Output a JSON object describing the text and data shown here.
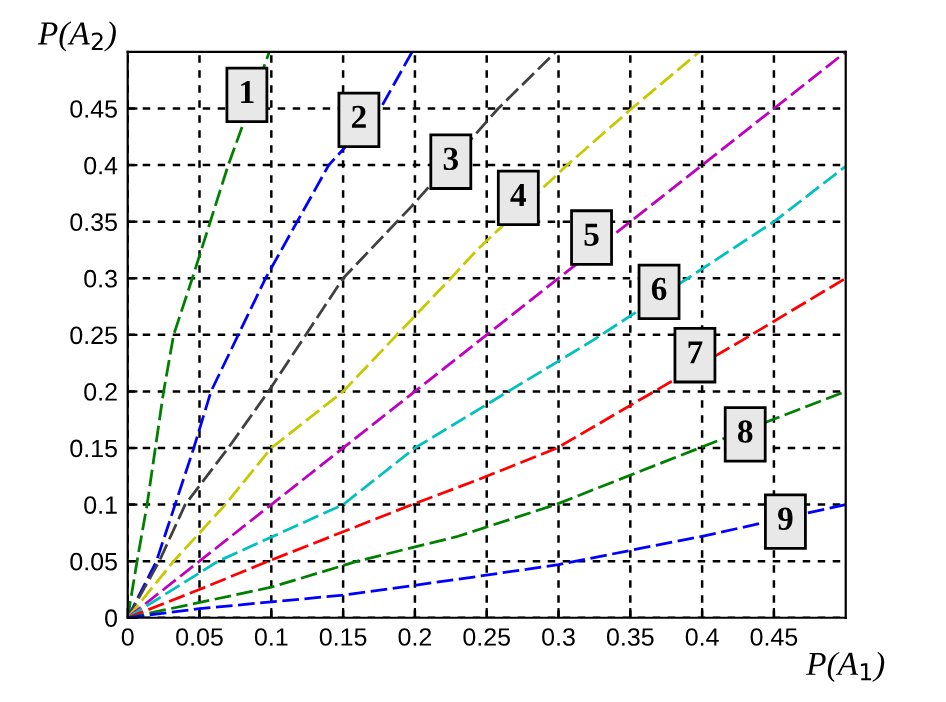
{
  "chart_data": {
    "type": "line",
    "xlabel": "P(A$_{1}$)",
    "ylabel": "P(A$_{2}$)",
    "series": [
      {
        "color": "#008000",
        "x": [
          0,
          0.0065,
          0.0135,
          0.025,
          0.032,
          0.045,
          0.07,
          0.0986
        ],
        "values": [
          0,
          0.05,
          0.1,
          0.2,
          0.25,
          0.3,
          0.4,
          0.5
        ]
      },
      {
        "color": "#0000ff",
        "x": [
          0,
          0.02,
          0.033,
          0.046,
          0.058,
          0.096,
          0.14,
          0.176,
          0.198
        ],
        "values": [
          0,
          0.05,
          0.1,
          0.15,
          0.2,
          0.3,
          0.4,
          0.45,
          0.5
        ]
      },
      {
        "color": "#404040",
        "x": [
          0,
          0.022,
          0.04,
          0.07,
          0.098,
          0.15,
          0.198,
          0.258,
          0.298
        ],
        "values": [
          0,
          0.05,
          0.1,
          0.15,
          0.2,
          0.3,
          0.364,
          0.45,
          0.5
        ]
      },
      {
        "color": "#c8c800",
        "x": [
          0,
          0.032,
          0.068,
          0.1,
          0.15,
          0.225,
          0.244,
          0.306,
          0.351,
          0.398
        ],
        "values": [
          0,
          0.05,
          0.1,
          0.15,
          0.2,
          0.3,
          0.326,
          0.4,
          0.45,
          0.5
        ]
      },
      {
        "color": "#c000c0",
        "x": [
          0,
          0.05,
          0.1,
          0.2,
          0.3,
          0.45,
          0.5
        ],
        "values": [
          0,
          0.05,
          0.1,
          0.2,
          0.3,
          0.45,
          0.5
        ]
      },
      {
        "color": "#00c0c0",
        "x": [
          0,
          0.063,
          0.15,
          0.2,
          0.265,
          0.325,
          0.39,
          0.45,
          0.5
        ],
        "values": [
          0,
          0.05,
          0.1,
          0.15,
          0.2,
          0.246,
          0.3,
          0.35,
          0.399
        ]
      },
      {
        "color": "#ff0000",
        "x": [
          0,
          0.05,
          0.098,
          0.198,
          0.244,
          0.299,
          0.364,
          0.429,
          0.5
        ],
        "values": [
          0,
          0.025,
          0.05,
          0.1,
          0.122,
          0.15,
          0.198,
          0.246,
          0.3
        ]
      },
      {
        "color": "#008000",
        "x": [
          0,
          0.1,
          0.16,
          0.23,
          0.298,
          0.398,
          0.5
        ],
        "values": [
          0,
          0.027,
          0.05,
          0.072,
          0.1,
          0.15,
          0.2
        ]
      },
      {
        "color": "#0000ff",
        "x": [
          0,
          0.05,
          0.1,
          0.15,
          0.23,
          0.3,
          0.4,
          0.5
        ],
        "values": [
          0,
          0.008,
          0.014,
          0.02,
          0.034,
          0.047,
          0.072,
          0.1
        ]
      }
    ],
    "xlim": [
      0,
      0.5
    ],
    "ylim": [
      0,
      0.5
    ],
    "xticks": [
      0,
      0.05,
      0.1,
      0.15,
      0.2,
      0.25,
      0.3,
      0.35,
      0.4,
      0.45
    ],
    "yticks": [
      0,
      0.05,
      0.1,
      0.15,
      0.2,
      0.25,
      0.3,
      0.35,
      0.4,
      0.45
    ],
    "grid": true,
    "line_style": "dashed",
    "legend": false,
    "annotations": [
      {
        "text": "1",
        "x": 0.083,
        "y": 0.462
      },
      {
        "text": "2",
        "x": 0.161,
        "y": 0.44
      },
      {
        "text": "3",
        "x": 0.225,
        "y": 0.403
      },
      {
        "text": "4",
        "x": 0.272,
        "y": 0.371
      },
      {
        "text": "5",
        "x": 0.323,
        "y": 0.336
      },
      {
        "text": "6",
        "x": 0.37,
        "y": 0.288
      },
      {
        "text": "7",
        "x": 0.395,
        "y": 0.232
      },
      {
        "text": "8",
        "x": 0.43,
        "y": 0.162
      },
      {
        "text": "9",
        "x": 0.458,
        "y": 0.085
      }
    ]
  }
}
